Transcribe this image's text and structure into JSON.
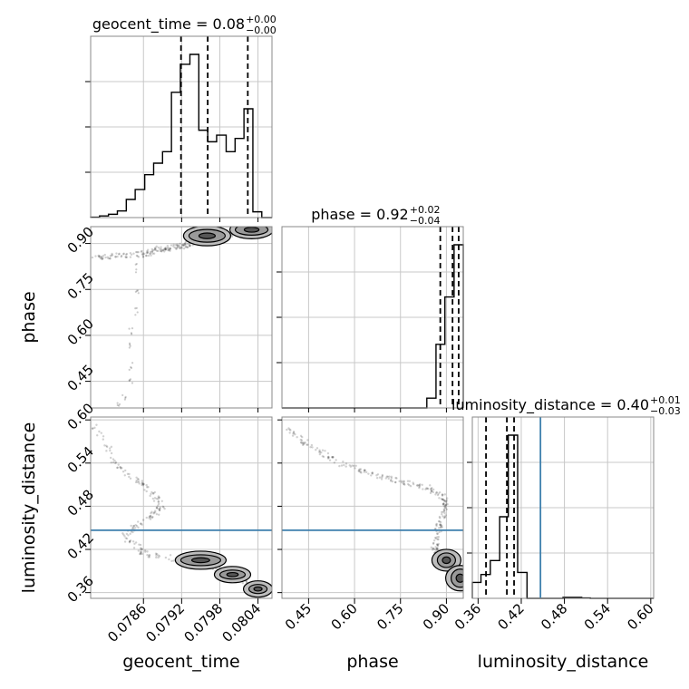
{
  "chart_data": {
    "type": "corner",
    "parameters": [
      "geocent_time",
      "phase",
      "luminosity_distance"
    ],
    "titles": [
      {
        "param": "geocent_time",
        "text": "geocent_time = 0.08",
        "sup": "+0.00",
        "sub": "−0.00"
      },
      {
        "param": "phase",
        "text": "phase = 0.92",
        "sup": "+0.02",
        "sub": "−0.04"
      },
      {
        "param": "luminosity_distance",
        "text": "luminosity_distance = 0.40",
        "sup": "+0.01",
        "sub": "−0.03"
      }
    ],
    "axis_labels": {
      "geocent_time": "geocent_time",
      "phase": "phase",
      "luminosity_distance": "luminosity_distance"
    },
    "ranges": {
      "geocent_time": [
        0.07777,
        0.08062
      ],
      "phase": [
        0.363,
        0.955
      ],
      "luminosity_distance": [
        0.352,
        0.604
      ]
    },
    "ticks": {
      "geocent_time": [
        "0.0786",
        "0.0792",
        "0.0798",
        "0.0804"
      ],
      "phase": [
        "0.45",
        "0.60",
        "0.75",
        "0.90"
      ],
      "luminosity_distance": [
        "0.36",
        "0.42",
        "0.48",
        "0.54",
        "0.60"
      ]
    },
    "truth": {
      "luminosity_distance": 0.4467
    },
    "quantiles": {
      "geocent_time": [
        0.07919,
        0.07961,
        0.08024
      ],
      "phase": [
        0.88,
        0.92,
        0.94
      ],
      "luminosity_distance": [
        0.371,
        0.4,
        0.41
      ]
    },
    "histograms": {
      "geocent_time": {
        "edges": [
          0.07777,
          0.07791,
          0.07805,
          0.07819,
          0.07833,
          0.07847,
          0.07862,
          0.07876,
          0.0789,
          0.07904,
          0.07918,
          0.07933,
          0.07947,
          0.07961,
          0.07975,
          0.0799,
          0.08004,
          0.08018,
          0.08032,
          0.08046,
          0.08062
        ],
        "counts": [
          0.2,
          1,
          2,
          4,
          11,
          17,
          26,
          33,
          40,
          76,
          93,
          99,
          53,
          46,
          50,
          40,
          48,
          66,
          3.5,
          0
        ]
      },
      "phase": {
        "edges": [
          0.363,
          0.393,
          0.422,
          0.452,
          0.481,
          0.511,
          0.54,
          0.57,
          0.6,
          0.629,
          0.659,
          0.688,
          0.718,
          0.747,
          0.777,
          0.807,
          0.836,
          0.866,
          0.895,
          0.925,
          0.955
        ],
        "counts": [
          0,
          0,
          0,
          0,
          0,
          0,
          0,
          0,
          0,
          0,
          0,
          0,
          0,
          0,
          0,
          0,
          6,
          39,
          68,
          100
        ]
      },
      "luminosity_distance": {
        "edges": [
          0.352,
          0.364,
          0.377,
          0.39,
          0.402,
          0.415,
          0.428,
          0.44,
          0.453,
          0.466,
          0.478,
          0.491,
          0.504,
          0.516,
          0.529,
          0.541,
          0.554,
          0.566,
          0.579,
          0.591,
          0.604
        ],
        "counts": [
          8,
          12,
          19,
          41,
          82,
          13,
          0,
          0,
          0,
          0,
          0.5,
          0.5,
          0.2,
          0,
          0,
          0,
          0,
          0,
          0,
          0
        ]
      }
    },
    "grid": true
  }
}
